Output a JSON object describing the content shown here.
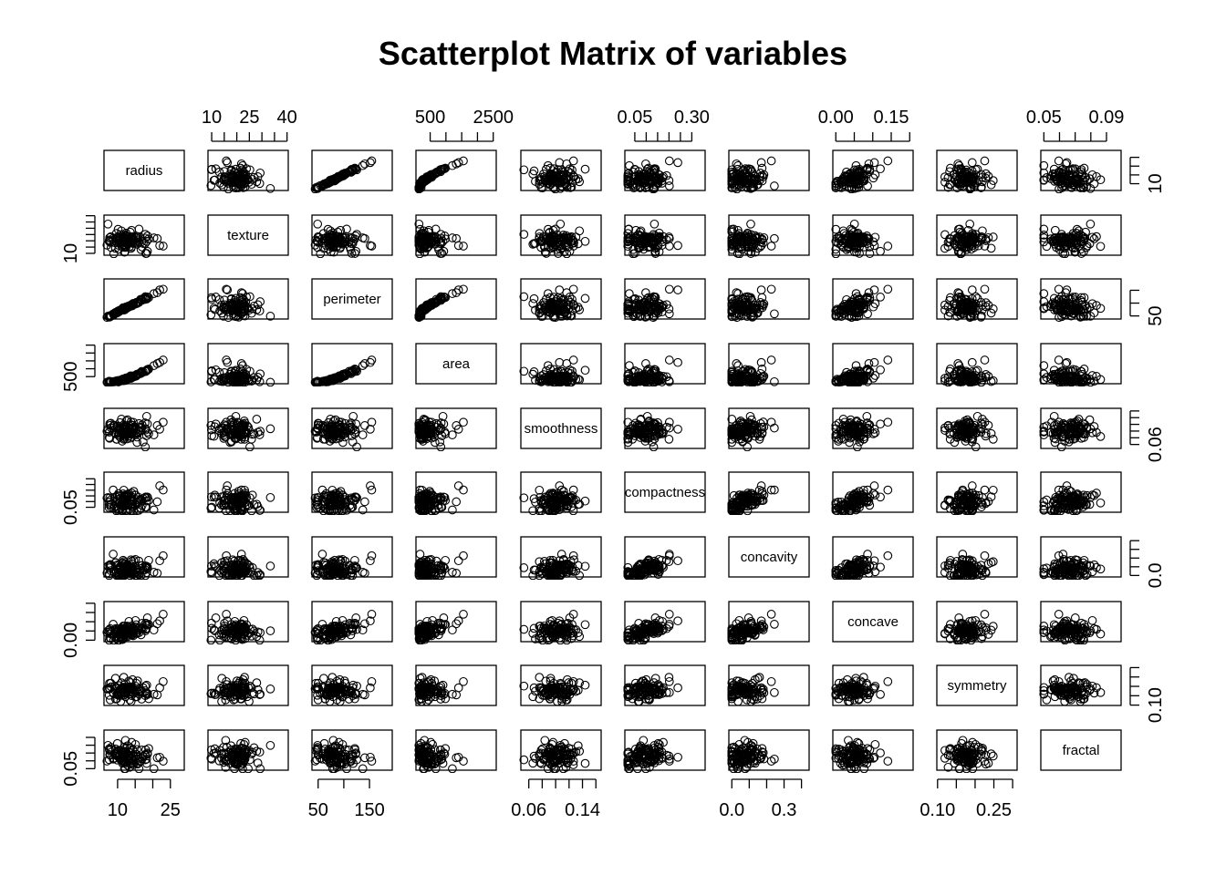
{
  "chart_data": {
    "type": "scatter",
    "title": "Scatterplot Matrix of variables",
    "variables": [
      {
        "name": "radius",
        "range": [
          6.98,
          28.1
        ],
        "ticks": [
          {
            "v": 10,
            "label": "10"
          },
          {
            "v": 15,
            "label": ""
          },
          {
            "v": 20,
            "label": ""
          },
          {
            "v": 25,
            "label": "25"
          }
        ]
      },
      {
        "name": "texture",
        "range": [
          9.71,
          39.3
        ],
        "ticks": [
          {
            "v": 10,
            "label": "10"
          },
          {
            "v": 15,
            "label": ""
          },
          {
            "v": 20,
            "label": ""
          },
          {
            "v": 25,
            "label": "25"
          },
          {
            "v": 30,
            "label": ""
          },
          {
            "v": 35,
            "label": ""
          },
          {
            "v": 40,
            "label": "40"
          }
        ]
      },
      {
        "name": "perimeter",
        "range": [
          43.8,
          188.5
        ],
        "ticks": [
          {
            "v": 50,
            "label": "50"
          },
          {
            "v": 100,
            "label": ""
          },
          {
            "v": 150,
            "label": "150"
          }
        ]
      },
      {
        "name": "area",
        "range": [
          143.5,
          2501
        ],
        "ticks": [
          {
            "v": 500,
            "label": "500"
          },
          {
            "v": 1000,
            "label": ""
          },
          {
            "v": 1500,
            "label": ""
          },
          {
            "v": 2000,
            "label": ""
          },
          {
            "v": 2500,
            "label": "2500"
          }
        ]
      },
      {
        "name": "smoothness",
        "range": [
          0.0526,
          0.1634
        ],
        "ticks": [
          {
            "v": 0.06,
            "label": "0.06"
          },
          {
            "v": 0.08,
            "label": ""
          },
          {
            "v": 0.1,
            "label": ""
          },
          {
            "v": 0.12,
            "label": ""
          },
          {
            "v": 0.14,
            "label": "0.14"
          },
          {
            "v": 0.16,
            "label": ""
          }
        ]
      },
      {
        "name": "compactness",
        "range": [
          0.0194,
          0.3454
        ],
        "ticks": [
          {
            "v": 0.05,
            "label": "0.05"
          },
          {
            "v": 0.1,
            "label": ""
          },
          {
            "v": 0.15,
            "label": ""
          },
          {
            "v": 0.2,
            "label": ""
          },
          {
            "v": 0.25,
            "label": ""
          },
          {
            "v": 0.3,
            "label": "0.30"
          }
        ]
      },
      {
        "name": "concavity",
        "range": [
          0.0,
          0.4268
        ],
        "ticks": [
          {
            "v": 0.0,
            "label": "0.0"
          },
          {
            "v": 0.1,
            "label": ""
          },
          {
            "v": 0.2,
            "label": ""
          },
          {
            "v": 0.3,
            "label": "0.3"
          },
          {
            "v": 0.4,
            "label": ""
          }
        ]
      },
      {
        "name": "concave",
        "range": [
          0.0,
          0.2012
        ],
        "ticks": [
          {
            "v": 0.0,
            "label": "0.00"
          },
          {
            "v": 0.05,
            "label": ""
          },
          {
            "v": 0.1,
            "label": ""
          },
          {
            "v": 0.15,
            "label": "0.15"
          },
          {
            "v": 0.2,
            "label": ""
          }
        ]
      },
      {
        "name": "symmetry",
        "range": [
          0.106,
          0.304
        ],
        "ticks": [
          {
            "v": 0.1,
            "label": "0.10"
          },
          {
            "v": 0.15,
            "label": ""
          },
          {
            "v": 0.2,
            "label": ""
          },
          {
            "v": 0.25,
            "label": "0.25"
          },
          {
            "v": 0.3,
            "label": ""
          }
        ]
      },
      {
        "name": "fractal",
        "range": [
          0.04996,
          0.09744
        ],
        "ticks": [
          {
            "v": 0.05,
            "label": "0.05"
          },
          {
            "v": 0.06,
            "label": ""
          },
          {
            "v": 0.07,
            "label": ""
          },
          {
            "v": 0.08,
            "label": ""
          },
          {
            "v": 0.09,
            "label": "0.09"
          }
        ]
      }
    ],
    "axis_placement": {
      "top_tick_columns": [
        1,
        3,
        5,
        7,
        9
      ],
      "bottom_tick_columns": [
        0,
        2,
        4,
        6,
        8
      ],
      "left_tick_rows": [
        1,
        3,
        5,
        7,
        9
      ],
      "right_tick_rows": [
        0,
        2,
        4,
        6,
        8
      ]
    },
    "grid": false,
    "legend": "none"
  }
}
